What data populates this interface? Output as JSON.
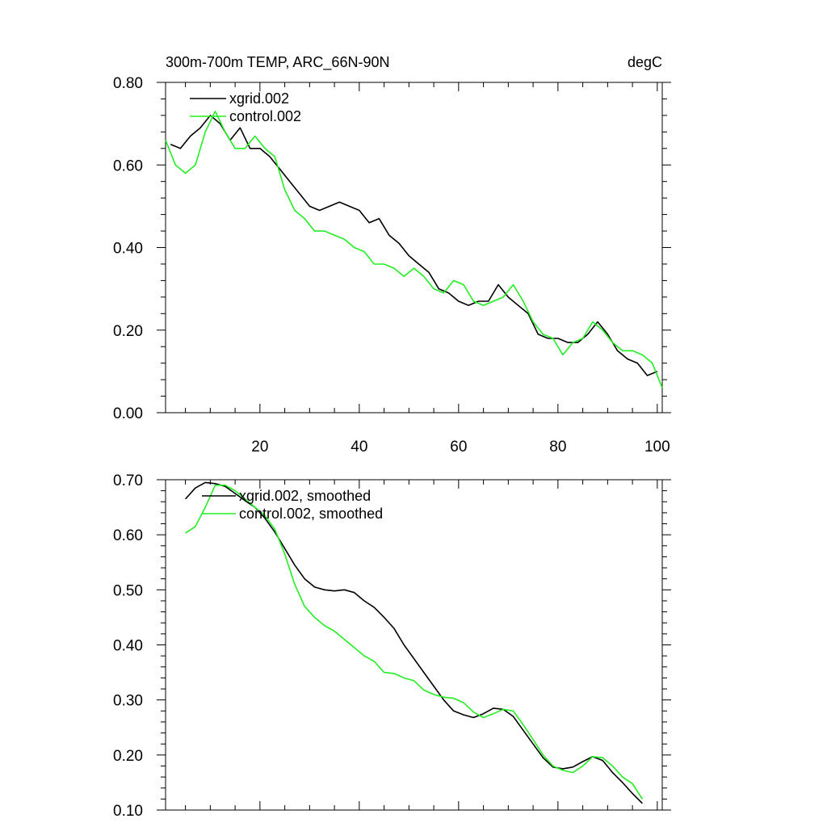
{
  "chart_data": [
    {
      "type": "line",
      "title": "300m-700m TEMP, ARC_66N-90N",
      "units": "degC",
      "xlim": [
        1,
        101
      ],
      "ylim": [
        0.0,
        0.8
      ],
      "x_ticks": [
        20,
        40,
        60,
        80,
        100
      ],
      "x_tick_labels": [
        "20",
        "40",
        "60",
        "80",
        "100"
      ],
      "y_ticks": [
        0.0,
        0.2,
        0.4,
        0.6,
        0.8
      ],
      "y_tick_labels": [
        "0.00",
        "0.20",
        "0.40",
        "0.60",
        "0.80"
      ],
      "series": [
        {
          "name": "xgrid.002",
          "color": "#000000",
          "x": [
            2,
            4,
            6,
            8,
            10,
            12,
            14,
            16,
            18,
            20,
            22,
            24,
            26,
            28,
            30,
            32,
            34,
            36,
            38,
            40,
            42,
            44,
            46,
            48,
            50,
            52,
            54,
            56,
            58,
            60,
            62,
            64,
            66,
            68,
            70,
            72,
            74,
            76,
            78,
            80,
            82,
            84,
            86,
            88,
            90,
            92,
            94,
            96,
            98,
            100
          ],
          "values": [
            0.65,
            0.64,
            0.67,
            0.69,
            0.72,
            0.7,
            0.66,
            0.69,
            0.64,
            0.64,
            0.62,
            0.59,
            0.56,
            0.53,
            0.5,
            0.49,
            0.5,
            0.51,
            0.5,
            0.49,
            0.46,
            0.47,
            0.43,
            0.41,
            0.38,
            0.36,
            0.34,
            0.3,
            0.29,
            0.27,
            0.26,
            0.27,
            0.27,
            0.31,
            0.28,
            0.26,
            0.24,
            0.19,
            0.18,
            0.18,
            0.17,
            0.17,
            0.19,
            0.22,
            0.19,
            0.15,
            0.13,
            0.12,
            0.09,
            0.1
          ]
        },
        {
          "name": "control.002",
          "color": "#22ee22",
          "x": [
            1,
            3,
            5,
            7,
            9,
            11,
            13,
            15,
            17,
            19,
            21,
            23,
            25,
            27,
            29,
            31,
            33,
            35,
            37,
            39,
            41,
            43,
            45,
            47,
            49,
            51,
            53,
            55,
            57,
            59,
            61,
            63,
            65,
            67,
            69,
            71,
            73,
            75,
            77,
            79,
            81,
            83,
            85,
            87,
            89,
            91,
            93,
            95,
            97,
            99,
            101
          ],
          "values": [
            0.66,
            0.6,
            0.58,
            0.6,
            0.68,
            0.73,
            0.68,
            0.64,
            0.64,
            0.67,
            0.64,
            0.62,
            0.54,
            0.49,
            0.47,
            0.44,
            0.44,
            0.43,
            0.42,
            0.4,
            0.39,
            0.36,
            0.36,
            0.35,
            0.33,
            0.35,
            0.33,
            0.3,
            0.29,
            0.32,
            0.31,
            0.27,
            0.26,
            0.27,
            0.28,
            0.31,
            0.27,
            0.22,
            0.19,
            0.18,
            0.14,
            0.17,
            0.18,
            0.22,
            0.2,
            0.17,
            0.15,
            0.15,
            0.14,
            0.12,
            0.06
          ]
        }
      ]
    },
    {
      "type": "line",
      "xlim": [
        1,
        101
      ],
      "ylim": [
        0.1,
        0.7
      ],
      "x_ticks": [
        20,
        40,
        60,
        80,
        100
      ],
      "y_ticks": [
        0.1,
        0.2,
        0.3,
        0.4,
        0.5,
        0.6,
        0.7
      ],
      "y_tick_labels": [
        "0.10",
        "0.20",
        "0.30",
        "0.40",
        "0.50",
        "0.60",
        "0.70"
      ],
      "series": [
        {
          "name": "xgrid.002, smoothed",
          "color": "#000000",
          "x": [
            5,
            7,
            9,
            11,
            13,
            15,
            17,
            19,
            21,
            23,
            25,
            27,
            29,
            31,
            33,
            35,
            37,
            39,
            41,
            43,
            45,
            47,
            49,
            51,
            53,
            55,
            57,
            59,
            61,
            63,
            65,
            67,
            69,
            71,
            73,
            75,
            77,
            79,
            81,
            83,
            85,
            87,
            89,
            91,
            93,
            95,
            97
          ],
          "values": [
            0.665,
            0.685,
            0.695,
            0.693,
            0.688,
            0.675,
            0.662,
            0.65,
            0.63,
            0.605,
            0.575,
            0.545,
            0.52,
            0.505,
            0.5,
            0.498,
            0.5,
            0.495,
            0.48,
            0.468,
            0.45,
            0.43,
            0.4,
            0.375,
            0.35,
            0.325,
            0.3,
            0.28,
            0.273,
            0.268,
            0.275,
            0.285,
            0.283,
            0.27,
            0.245,
            0.22,
            0.195,
            0.178,
            0.175,
            0.178,
            0.188,
            0.197,
            0.19,
            0.168,
            0.15,
            0.13,
            0.112
          ]
        },
        {
          "name": "control.002, smoothed",
          "color": "#22ee22",
          "x": [
            5,
            7,
            9,
            11,
            13,
            15,
            17,
            19,
            21,
            23,
            25,
            27,
            29,
            31,
            33,
            35,
            37,
            39,
            41,
            43,
            45,
            47,
            49,
            51,
            53,
            55,
            57,
            59,
            61,
            63,
            65,
            67,
            69,
            71,
            73,
            75,
            77,
            79,
            81,
            83,
            85,
            87,
            89,
            91,
            93,
            95,
            97
          ],
          "values": [
            0.603,
            0.615,
            0.65,
            0.69,
            0.69,
            0.68,
            0.665,
            0.65,
            0.635,
            0.61,
            0.565,
            0.51,
            0.47,
            0.45,
            0.435,
            0.425,
            0.41,
            0.395,
            0.38,
            0.37,
            0.35,
            0.348,
            0.34,
            0.335,
            0.318,
            0.31,
            0.305,
            0.303,
            0.295,
            0.278,
            0.268,
            0.275,
            0.283,
            0.28,
            0.255,
            0.228,
            0.2,
            0.18,
            0.172,
            0.168,
            0.18,
            0.197,
            0.195,
            0.18,
            0.16,
            0.148,
            0.12
          ]
        }
      ]
    }
  ]
}
